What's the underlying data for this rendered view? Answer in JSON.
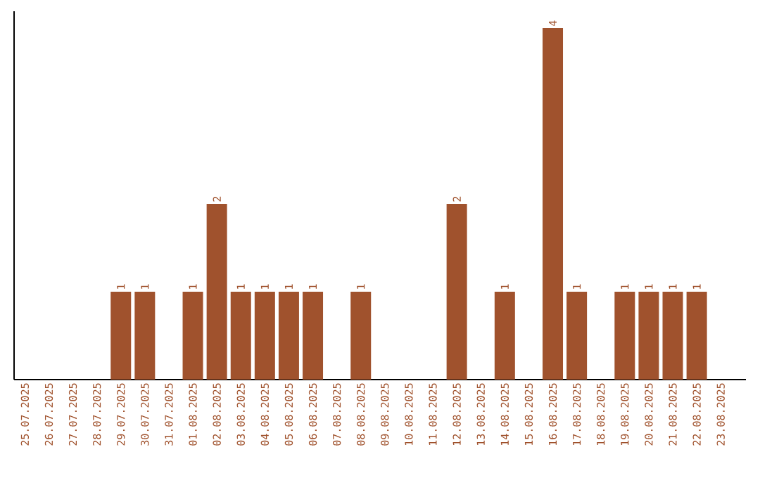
{
  "chart_data": {
    "type": "bar",
    "color": "#a0522d",
    "categories": [
      "25.07.2025",
      "26.07.2025",
      "27.07.2025",
      "28.07.2025",
      "29.07.2025",
      "30.07.2025",
      "31.07.2025",
      "01.08.2025",
      "02.08.2025",
      "03.08.2025",
      "04.08.2025",
      "05.08.2025",
      "06.08.2025",
      "07.08.2025",
      "08.08.2025",
      "09.08.2025",
      "10.08.2025",
      "11.08.2025",
      "12.08.2025",
      "13.08.2025",
      "14.08.2025",
      "15.08.2025",
      "16.08.2025",
      "17.08.2025",
      "18.08.2025",
      "19.08.2025",
      "20.08.2025",
      "21.08.2025",
      "22.08.2025",
      "23.08.2025"
    ],
    "values": [
      0,
      0,
      0,
      0,
      1,
      1,
      0,
      1,
      2,
      1,
      1,
      1,
      1,
      0,
      1,
      0,
      0,
      0,
      2,
      0,
      1,
      0,
      4,
      1,
      0,
      1,
      1,
      1,
      1,
      0
    ],
    "value_labels": [
      null,
      null,
      null,
      null,
      "1",
      "1",
      null,
      "1",
      "2",
      "1",
      "1",
      "1",
      "1",
      null,
      "1",
      null,
      null,
      null,
      "2",
      null,
      "1",
      null,
      "4",
      "1",
      null,
      "1",
      "1",
      "1",
      "1",
      null
    ],
    "grid": false
  }
}
